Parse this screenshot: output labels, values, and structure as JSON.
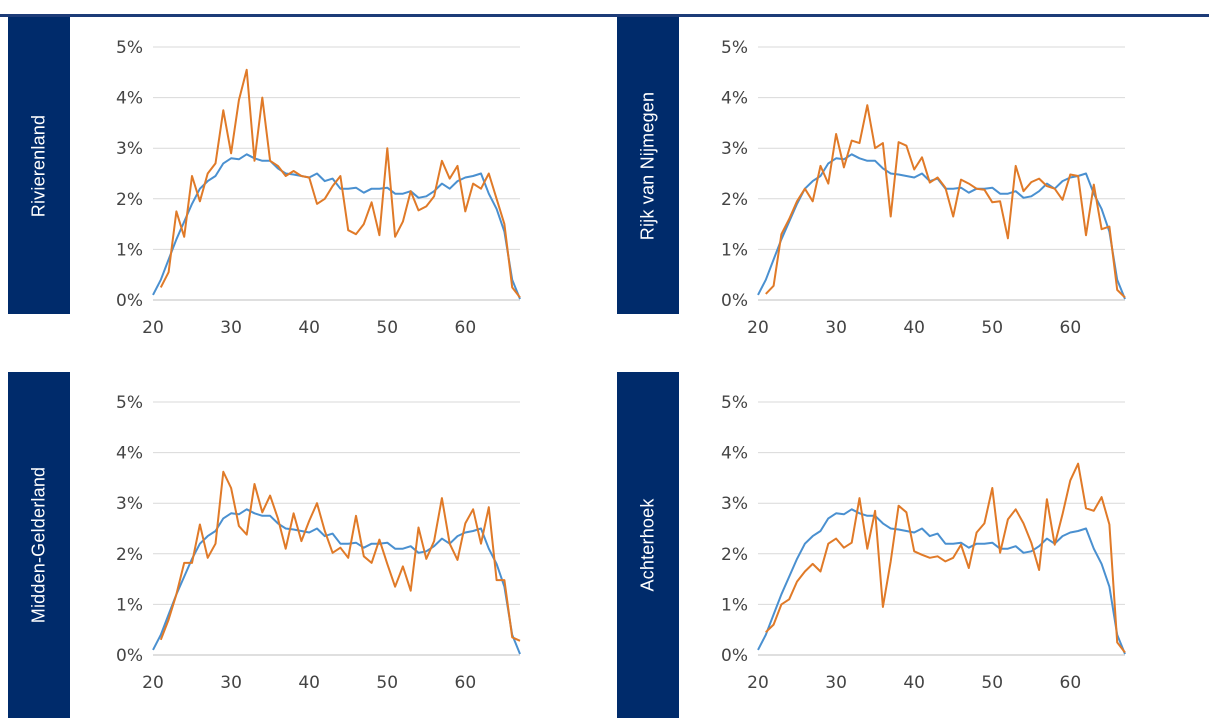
{
  "colors": {
    "tab": "#002B6B",
    "rule": "#1d3c78",
    "series_blue": "#4a90d0",
    "series_orange": "#e07a28"
  },
  "chart_data": [
    {
      "type": "line",
      "region": "Rivierenland",
      "ylim": [
        0,
        5
      ],
      "yticks": [
        "0%",
        "1%",
        "2%",
        "3%",
        "4%",
        "5%"
      ],
      "xlim": [
        20,
        67
      ],
      "xticks": [
        20,
        30,
        40,
        50,
        60
      ],
      "x": [
        20,
        21,
        22,
        23,
        24,
        25,
        26,
        27,
        28,
        29,
        30,
        31,
        32,
        33,
        34,
        35,
        36,
        37,
        38,
        39,
        40,
        41,
        42,
        43,
        44,
        45,
        46,
        47,
        48,
        49,
        50,
        51,
        52,
        53,
        54,
        55,
        56,
        57,
        58,
        59,
        60,
        61,
        62,
        63,
        64,
        65,
        66,
        67
      ],
      "series": [
        {
          "color": "blue",
          "values": [
            0.1,
            0.4,
            0.8,
            1.2,
            1.55,
            1.9,
            2.2,
            2.35,
            2.45,
            2.7,
            2.8,
            2.78,
            2.88,
            2.8,
            2.75,
            2.75,
            2.6,
            2.5,
            2.48,
            2.45,
            2.42,
            2.5,
            2.35,
            2.4,
            2.2,
            2.2,
            2.22,
            2.12,
            2.2,
            2.2,
            2.22,
            2.1,
            2.1,
            2.15,
            2.02,
            2.05,
            2.15,
            2.3,
            2.2,
            2.35,
            2.42,
            2.45,
            2.5,
            2.1,
            1.8,
            1.35,
            0.4,
            0.02
          ]
        },
        {
          "color": "orange",
          "values": [
            null,
            0.25,
            0.55,
            1.75,
            1.25,
            2.45,
            1.95,
            2.5,
            2.7,
            3.75,
            2.9,
            3.95,
            4.55,
            2.75,
            4.0,
            2.75,
            2.65,
            2.45,
            2.55,
            2.45,
            2.42,
            1.9,
            2.0,
            2.25,
            2.45,
            1.38,
            1.3,
            1.5,
            1.93,
            1.28,
            3.0,
            1.25,
            1.55,
            2.15,
            1.77,
            1.85,
            2.05,
            2.75,
            2.4,
            2.65,
            1.75,
            2.3,
            2.2,
            2.5,
            2.0,
            1.5,
            0.25,
            0.05
          ]
        }
      ]
    },
    {
      "type": "line",
      "region": "Rijk van Nijmegen",
      "ylim": [
        0,
        5
      ],
      "yticks": [
        "0%",
        "1%",
        "2%",
        "3%",
        "4%",
        "5%"
      ],
      "xlim": [
        20,
        67
      ],
      "xticks": [
        20,
        30,
        40,
        50,
        60
      ],
      "x": [
        20,
        21,
        22,
        23,
        24,
        25,
        26,
        27,
        28,
        29,
        30,
        31,
        32,
        33,
        34,
        35,
        36,
        37,
        38,
        39,
        40,
        41,
        42,
        43,
        44,
        45,
        46,
        47,
        48,
        49,
        50,
        51,
        52,
        53,
        54,
        55,
        56,
        57,
        58,
        59,
        60,
        61,
        62,
        63,
        64,
        65,
        66,
        67
      ],
      "series": [
        {
          "color": "blue",
          "values": [
            0.1,
            0.4,
            0.8,
            1.2,
            1.55,
            1.9,
            2.2,
            2.35,
            2.45,
            2.7,
            2.8,
            2.78,
            2.88,
            2.8,
            2.75,
            2.75,
            2.6,
            2.5,
            2.48,
            2.45,
            2.42,
            2.5,
            2.35,
            2.4,
            2.2,
            2.2,
            2.22,
            2.12,
            2.2,
            2.2,
            2.22,
            2.1,
            2.1,
            2.15,
            2.02,
            2.05,
            2.15,
            2.3,
            2.2,
            2.35,
            2.42,
            2.45,
            2.5,
            2.1,
            1.8,
            1.35,
            0.4,
            0.02
          ]
        },
        {
          "color": "orange",
          "values": [
            null,
            0.12,
            0.28,
            1.3,
            1.6,
            1.95,
            2.2,
            1.95,
            2.65,
            2.3,
            3.28,
            2.62,
            3.15,
            3.1,
            3.85,
            3.0,
            3.1,
            1.65,
            3.12,
            3.05,
            2.58,
            2.82,
            2.32,
            2.42,
            2.22,
            1.65,
            2.38,
            2.3,
            2.2,
            2.18,
            1.93,
            1.95,
            1.22,
            2.65,
            2.15,
            2.33,
            2.4,
            2.25,
            2.2,
            1.98,
            2.48,
            2.45,
            1.28,
            2.28,
            1.4,
            1.45,
            0.2,
            0.05
          ]
        }
      ]
    },
    {
      "type": "line",
      "region": "Midden-Gelderland",
      "ylim": [
        0,
        5
      ],
      "yticks": [
        "0%",
        "1%",
        "2%",
        "3%",
        "4%",
        "5%"
      ],
      "xlim": [
        20,
        67
      ],
      "xticks": [
        20,
        30,
        40,
        50,
        60
      ],
      "x": [
        20,
        21,
        22,
        23,
        24,
        25,
        26,
        27,
        28,
        29,
        30,
        31,
        32,
        33,
        34,
        35,
        36,
        37,
        38,
        39,
        40,
        41,
        42,
        43,
        44,
        45,
        46,
        47,
        48,
        49,
        50,
        51,
        52,
        53,
        54,
        55,
        56,
        57,
        58,
        59,
        60,
        61,
        62,
        63,
        64,
        65,
        66,
        67
      ],
      "series": [
        {
          "color": "blue",
          "values": [
            0.1,
            0.4,
            0.8,
            1.2,
            1.55,
            1.9,
            2.2,
            2.35,
            2.45,
            2.7,
            2.8,
            2.78,
            2.88,
            2.8,
            2.75,
            2.75,
            2.6,
            2.5,
            2.48,
            2.45,
            2.42,
            2.5,
            2.35,
            2.4,
            2.2,
            2.2,
            2.22,
            2.12,
            2.2,
            2.2,
            2.22,
            2.1,
            2.1,
            2.15,
            2.02,
            2.05,
            2.15,
            2.3,
            2.2,
            2.35,
            2.42,
            2.45,
            2.5,
            2.1,
            1.8,
            1.35,
            0.4,
            0.02
          ]
        },
        {
          "color": "orange",
          "values": [
            null,
            0.3,
            0.7,
            1.2,
            1.82,
            1.82,
            2.58,
            1.92,
            2.2,
            3.62,
            3.3,
            2.55,
            2.38,
            3.38,
            2.82,
            3.15,
            2.7,
            2.1,
            2.8,
            2.25,
            2.65,
            3.0,
            2.45,
            2.02,
            2.12,
            1.92,
            2.75,
            1.95,
            1.82,
            2.28,
            1.8,
            1.35,
            1.75,
            1.27,
            2.52,
            1.9,
            2.25,
            3.1,
            2.2,
            1.88,
            2.6,
            2.88,
            2.2,
            2.92,
            1.48,
            1.48,
            0.35,
            0.28
          ]
        }
      ]
    },
    {
      "type": "line",
      "region": "Achterhoek",
      "ylim": [
        0,
        5
      ],
      "yticks": [
        "0%",
        "1%",
        "2%",
        "3%",
        "4%",
        "5%"
      ],
      "xlim": [
        20,
        67
      ],
      "xticks": [
        20,
        30,
        40,
        50,
        60
      ],
      "x": [
        20,
        21,
        22,
        23,
        24,
        25,
        26,
        27,
        28,
        29,
        30,
        31,
        32,
        33,
        34,
        35,
        36,
        37,
        38,
        39,
        40,
        41,
        42,
        43,
        44,
        45,
        46,
        47,
        48,
        49,
        50,
        51,
        52,
        53,
        54,
        55,
        56,
        57,
        58,
        59,
        60,
        61,
        62,
        63,
        64,
        65,
        66,
        67
      ],
      "series": [
        {
          "color": "blue",
          "values": [
            0.1,
            0.4,
            0.8,
            1.2,
            1.55,
            1.9,
            2.2,
            2.35,
            2.45,
            2.7,
            2.8,
            2.78,
            2.88,
            2.8,
            2.75,
            2.75,
            2.6,
            2.5,
            2.48,
            2.45,
            2.42,
            2.5,
            2.35,
            2.4,
            2.2,
            2.2,
            2.22,
            2.12,
            2.2,
            2.2,
            2.22,
            2.1,
            2.1,
            2.15,
            2.02,
            2.05,
            2.15,
            2.3,
            2.2,
            2.35,
            2.42,
            2.45,
            2.5,
            2.1,
            1.8,
            1.35,
            0.4,
            0.02
          ]
        },
        {
          "color": "orange",
          "values": [
            null,
            0.45,
            0.6,
            1.0,
            1.1,
            1.45,
            1.65,
            1.8,
            1.65,
            2.2,
            2.3,
            2.12,
            2.22,
            3.1,
            2.1,
            2.85,
            0.95,
            1.85,
            2.95,
            2.82,
            2.05,
            1.98,
            1.92,
            1.95,
            1.85,
            1.92,
            2.18,
            1.72,
            2.42,
            2.6,
            3.3,
            2.02,
            2.68,
            2.88,
            2.6,
            2.22,
            1.68,
            3.08,
            2.18,
            2.78,
            3.45,
            3.78,
            2.9,
            2.85,
            3.12,
            2.58,
            0.25,
            0.05
          ]
        }
      ]
    }
  ]
}
